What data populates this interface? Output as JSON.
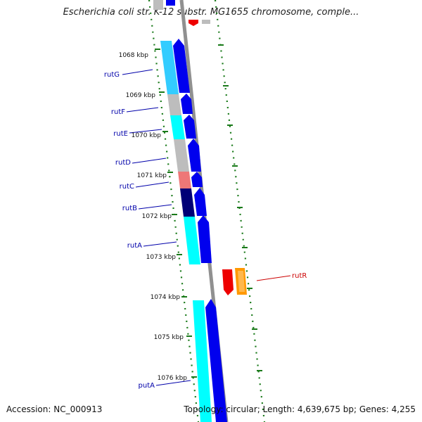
{
  "title": "Escherichia coli str. K-12 substr. MG1655 chromosome, comple...",
  "footer": {
    "accession": "Accession: NC_000913",
    "stats": "Topology: circular; Length: 4,639,675 bp; Genes: 4,255"
  },
  "ticks": [
    "1068 kbp",
    "1069 kbp",
    "1070 kbp",
    "1071 kbp",
    "1072 kbp",
    "1073 kbp",
    "1074 kbp",
    "1075 kbp",
    "1076 kbp"
  ],
  "genes": [
    {
      "name": "rutG",
      "label_color": "#0000aa"
    },
    {
      "name": "rutF",
      "label_color": "#0000aa"
    },
    {
      "name": "rutE",
      "label_color": "#0000aa"
    },
    {
      "name": "rutD",
      "label_color": "#0000aa"
    },
    {
      "name": "rutC",
      "label_color": "#0000aa"
    },
    {
      "name": "rutB",
      "label_color": "#0000aa"
    },
    {
      "name": "rutA",
      "label_color": "#0000aa"
    },
    {
      "name": "rutR",
      "label_color": "#cc0000"
    },
    {
      "name": "putA",
      "label_color": "#0000aa"
    }
  ],
  "colors": {
    "forward_strand": "#0000ee",
    "backbone": "#909090",
    "tick_dots": "#1a7a1a",
    "cog_cyan": "#00ffff",
    "cog_lightblue": "#33ccff",
    "cog_gray": "#bdbdbd",
    "cog_salmon": "#ee7777",
    "cog_navy": "#000077",
    "cog_red": "#ee0000",
    "cog_orange": "#ff9900"
  }
}
